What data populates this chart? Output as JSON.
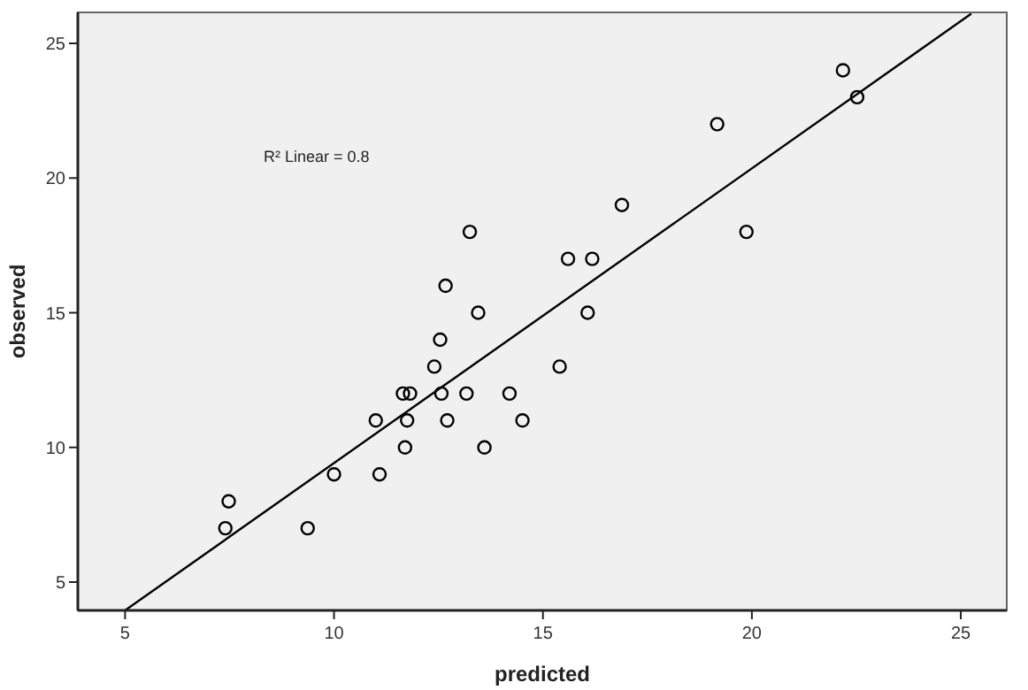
{
  "chart_data": {
    "type": "scatter",
    "xlabel": "predicted",
    "ylabel": "observed",
    "xlim": [
      3.87,
      26.1
    ],
    "ylim": [
      3.95,
      26.15
    ],
    "xticks": [
      5,
      10,
      15,
      20,
      25
    ],
    "yticks": [
      5,
      10,
      15,
      20,
      25
    ],
    "grid": false,
    "marker": "circle",
    "annotations": [
      "R² Linear = 0.8"
    ],
    "series": [
      {
        "color": "#000000",
        "x": [
          7.48,
          7.4,
          9.37,
          10.0,
          11.09,
          11.0,
          11.7,
          11.75,
          11.65,
          11.82,
          12.57,
          12.4,
          12.54,
          12.71,
          13.17,
          13.6,
          14.2,
          14.51,
          13.25,
          12.67,
          13.45,
          22.18,
          22.52,
          19.17,
          16.89,
          19.87,
          15.6,
          16.18,
          16.07,
          15.4
        ],
        "values": [
          8,
          7,
          7,
          9,
          9,
          11,
          10,
          11,
          12,
          12,
          12,
          13,
          14,
          11,
          12,
          10,
          12,
          11,
          18,
          16,
          15,
          24,
          23,
          22,
          19,
          18,
          17,
          17,
          15,
          13
        ]
      },
      {
        "type": "line",
        "color": "#000000",
        "marker": "none",
        "x": [
          5,
          25.25
        ],
        "values": [
          3.95,
          26.1
        ]
      }
    ]
  }
}
